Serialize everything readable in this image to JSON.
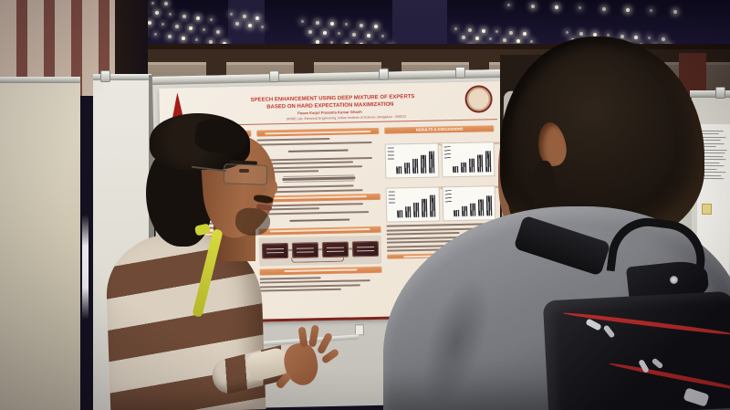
{
  "poster": {
    "title_line1": "SPEECH ENHANCEMENT USING DEEP MIXTURE OF EXPERTS",
    "title_line2": "BASED ON HARD EXPECTATION MAXIMIZATION",
    "authors": "Pavan Karjol    Prasanta Kumar Ghosh",
    "affiliation": "SPIRE Lab, Electrical Engineering, Indian Institute of Science, Bengaluru - 560012",
    "results_header": "RESULTS & DISCUSSIONS",
    "captions": {
      "seen": "PESQ and STOI scores for seen noise cases",
      "unseen": "PESQ and STOI scores for unseen noise cases"
    },
    "colors": {
      "paper": "#f2ebe1",
      "title_red": "#c23a31",
      "header_orange": "#dd8a55",
      "accent_maroon": "#7e221b"
    }
  }
}
